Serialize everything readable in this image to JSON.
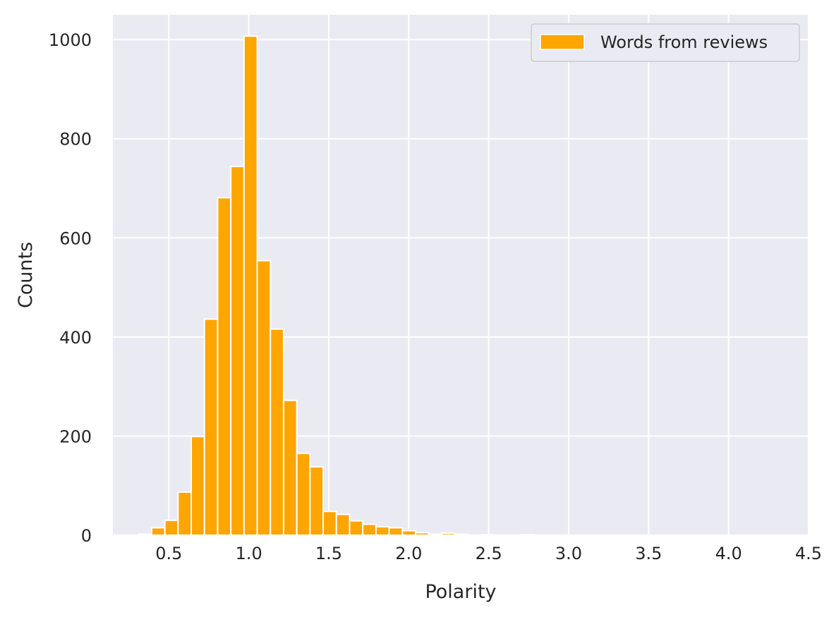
{
  "chart_data": {
    "type": "bar",
    "subtype": "histogram",
    "xlabel": "Polarity",
    "ylabel": "Counts",
    "xlim": [
      0.15,
      4.5
    ],
    "ylim": [
      0,
      1050
    ],
    "xticks": [
      0.5,
      1.0,
      1.5,
      2.0,
      2.5,
      3.0,
      3.5,
      4.0,
      4.5
    ],
    "xtick_labels": [
      "0.5",
      "1.0",
      "1.5",
      "2.0",
      "2.5",
      "3.0",
      "3.5",
      "4.0",
      "4.5"
    ],
    "yticks": [
      0,
      200,
      400,
      600,
      800,
      1000
    ],
    "ytick_labels": [
      "0",
      "200",
      "400",
      "600",
      "800",
      "1000"
    ],
    "grid": true,
    "legend_position": "top-right",
    "series": [
      {
        "name": "Words from reviews",
        "bin_width": 0.0825,
        "bin_starts": [
          0.31,
          0.3925,
          0.475,
          0.5575,
          0.64,
          0.7225,
          0.805,
          0.8875,
          0.97,
          1.0525,
          1.135,
          1.2175,
          1.3,
          1.3825,
          1.465,
          1.5475,
          1.63,
          1.7125,
          1.795,
          1.8775,
          1.96,
          2.0425,
          2.125,
          2.2075,
          2.29,
          2.3725,
          2.455,
          2.5375,
          2.62,
          2.7025
        ],
        "counts": [
          2,
          15,
          30,
          87,
          199,
          436,
          681,
          744,
          1007,
          554,
          416,
          272,
          165,
          138,
          48,
          42,
          29,
          22,
          17,
          15,
          9,
          5,
          2,
          4,
          2,
          0,
          1,
          0,
          0,
          1
        ]
      }
    ]
  },
  "colors": {
    "bar_fill": "#ffa500",
    "bar_edge": "#ffffff",
    "plot_background": "#eaeaf2",
    "grid": "#ffffff",
    "text": "#262626"
  }
}
